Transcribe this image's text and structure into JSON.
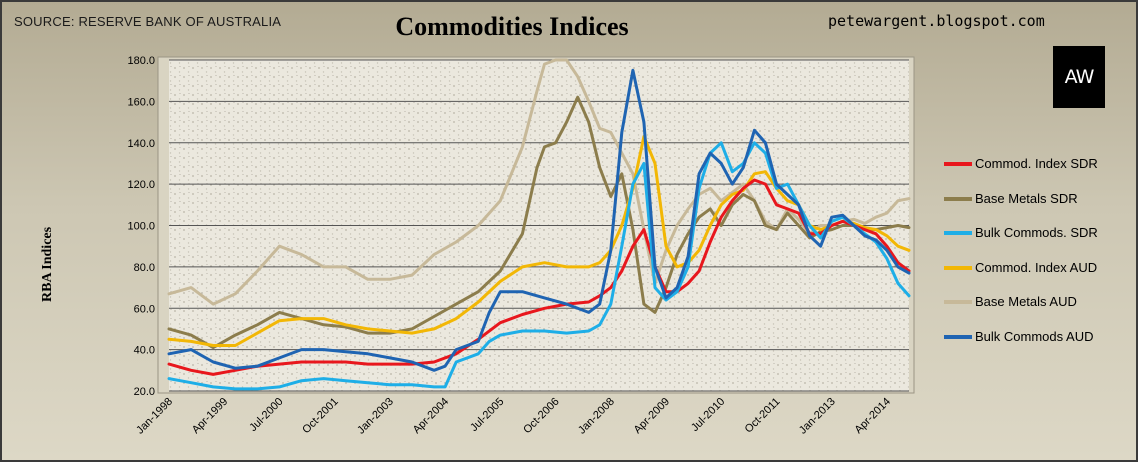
{
  "header": {
    "source": "SOURCE: RESERVE BANK OF AUSTRALIA",
    "title": "Commodities Indices",
    "blog": "petewargent.blogspot.com",
    "logo_text": "AW"
  },
  "chart_data": {
    "type": "line",
    "title": "Commodities Indices",
    "ylabel": "RBA Indices",
    "xlabel": "",
    "ylim": [
      20,
      180
    ],
    "yticks": [
      "20.0",
      "40.0",
      "60.0",
      "80.0",
      "100.0",
      "120.0",
      "140.0",
      "160.0",
      "180.0"
    ],
    "xticks": [
      "Jan-1998",
      "Apr-1999",
      "Jul-2000",
      "Oct-2001",
      "Jan-2003",
      "Apr-2004",
      "Jul-2005",
      "Oct-2006",
      "Jan-2008",
      "Apr-2009",
      "Jul-2010",
      "Oct-2011",
      "Jan-2013",
      "Apr-2014"
    ],
    "x_range": [
      1998.0,
      2014.75
    ],
    "grid": "horizontal",
    "legend_position": "right",
    "series": [
      {
        "name": "Base Metals AUD",
        "color": "#c7b999",
        "x": [
          1998.0,
          1998.5,
          1999.0,
          1999.5,
          2000.0,
          2000.5,
          2001.0,
          2001.5,
          2002.0,
          2002.5,
          2003.0,
          2003.5,
          2004.0,
          2004.5,
          2005.0,
          2005.5,
          2006.0,
          2006.33,
          2006.5,
          2006.75,
          2007.0,
          2007.25,
          2007.5,
          2007.75,
          2008.0,
          2008.25,
          2008.5,
          2008.75,
          2009.0,
          2009.25,
          2009.5,
          2009.75,
          2010.0,
          2010.25,
          2010.5,
          2010.75,
          2011.0,
          2011.25,
          2011.5,
          2011.75,
          2012.0,
          2012.25,
          2012.5,
          2012.75,
          2013.0,
          2013.25,
          2013.5,
          2013.75,
          2014.0,
          2014.25,
          2014.5,
          2014.75
        ],
        "values": [
          67,
          70,
          62,
          67,
          78,
          90,
          86,
          80,
          80,
          74,
          74,
          76,
          86,
          92,
          100,
          112,
          138,
          165,
          178,
          180,
          180,
          172,
          160,
          147,
          145,
          135,
          125,
          98,
          72,
          88,
          100,
          108,
          115,
          118,
          112,
          116,
          120,
          112,
          102,
          98,
          108,
          103,
          96,
          100,
          100,
          102,
          103,
          101,
          104,
          106,
          112,
          113
        ]
      },
      {
        "name": "Base Metals SDR",
        "color": "#8c7d4c",
        "x": [
          1998.0,
          1998.5,
          1999.0,
          1999.5,
          2000.0,
          2000.5,
          2001.0,
          2001.5,
          2002.0,
          2002.5,
          2003.0,
          2003.5,
          2004.0,
          2004.5,
          2005.0,
          2005.5,
          2006.0,
          2006.33,
          2006.5,
          2006.75,
          2007.0,
          2007.25,
          2007.5,
          2007.75,
          2008.0,
          2008.25,
          2008.5,
          2008.75,
          2009.0,
          2009.25,
          2009.5,
          2009.75,
          2010.0,
          2010.25,
          2010.5,
          2010.75,
          2011.0,
          2011.25,
          2011.5,
          2011.75,
          2012.0,
          2012.25,
          2012.5,
          2012.75,
          2013.0,
          2013.25,
          2013.5,
          2013.75,
          2014.0,
          2014.25,
          2014.5,
          2014.75
        ],
        "values": [
          50,
          47,
          41,
          47,
          52,
          58,
          55,
          52,
          51,
          48,
          48,
          50,
          56,
          62,
          68,
          78,
          96,
          128,
          138,
          140,
          150,
          162,
          150,
          128,
          114,
          125,
          98,
          62,
          58,
          70,
          86,
          96,
          104,
          108,
          100,
          110,
          115,
          112,
          100,
          98,
          106,
          100,
          94,
          97,
          98,
          100,
          100,
          98,
          98,
          99,
          100,
          99
        ]
      },
      {
        "name": "Commod. Index AUD",
        "color": "#f2b705",
        "x": [
          1998.0,
          1998.5,
          1999.0,
          1999.5,
          2000.0,
          2000.5,
          2001.0,
          2001.5,
          2002.0,
          2002.5,
          2003.0,
          2003.5,
          2004.0,
          2004.5,
          2005.0,
          2005.5,
          2006.0,
          2006.5,
          2007.0,
          2007.5,
          2007.75,
          2008.0,
          2008.25,
          2008.5,
          2008.75,
          2009.0,
          2009.25,
          2009.5,
          2009.75,
          2010.0,
          2010.25,
          2010.5,
          2010.75,
          2011.0,
          2011.25,
          2011.5,
          2011.75,
          2012.0,
          2012.25,
          2012.5,
          2012.75,
          2013.0,
          2013.25,
          2013.5,
          2013.75,
          2014.0,
          2014.25,
          2014.5,
          2014.75
        ],
        "values": [
          45,
          44,
          42,
          42,
          48,
          54,
          55,
          55,
          52,
          50,
          49,
          48,
          50,
          55,
          63,
          73,
          80,
          82,
          80,
          80,
          82,
          88,
          100,
          118,
          143,
          130,
          90,
          80,
          82,
          88,
          100,
          110,
          115,
          117,
          125,
          126,
          118,
          112,
          110,
          100,
          98,
          100,
          102,
          101,
          99,
          98,
          95,
          90,
          88
        ]
      },
      {
        "name": "Commod. Index SDR",
        "color": "#e8171d",
        "x": [
          1998.0,
          1998.5,
          1999.0,
          1999.5,
          2000.0,
          2000.5,
          2001.0,
          2001.5,
          2002.0,
          2002.5,
          2003.0,
          2003.5,
          2004.0,
          2004.5,
          2005.0,
          2005.5,
          2006.0,
          2006.5,
          2007.0,
          2007.5,
          2007.75,
          2008.0,
          2008.25,
          2008.5,
          2008.75,
          2009.0,
          2009.25,
          2009.5,
          2009.75,
          2010.0,
          2010.25,
          2010.5,
          2010.75,
          2011.0,
          2011.25,
          2011.5,
          2011.75,
          2012.0,
          2012.25,
          2012.5,
          2012.75,
          2013.0,
          2013.25,
          2013.5,
          2013.75,
          2014.0,
          2014.25,
          2014.5,
          2014.75
        ],
        "values": [
          33,
          30,
          28,
          30,
          32,
          33,
          34,
          34,
          34,
          33,
          33,
          33,
          34,
          38,
          45,
          53,
          57,
          60,
          62,
          63,
          66,
          70,
          78,
          90,
          98,
          80,
          68,
          68,
          72,
          78,
          92,
          104,
          112,
          118,
          122,
          120,
          110,
          108,
          106,
          96,
          96,
          100,
          102,
          100,
          98,
          96,
          90,
          82,
          78
        ]
      },
      {
        "name": "Bulk Commods. SDR",
        "color": "#1eaee7",
        "x": [
          1998.0,
          1998.5,
          1999.0,
          1999.5,
          2000.0,
          2000.5,
          2001.0,
          2001.5,
          2002.0,
          2002.5,
          2003.0,
          2003.5,
          2004.0,
          2004.25,
          2004.5,
          2005.0,
          2005.25,
          2005.5,
          2006.0,
          2006.5,
          2007.0,
          2007.5,
          2007.75,
          2008.0,
          2008.25,
          2008.5,
          2008.75,
          2009.0,
          2009.25,
          2009.5,
          2009.75,
          2010.0,
          2010.25,
          2010.5,
          2010.75,
          2011.0,
          2011.25,
          2011.5,
          2011.75,
          2012.0,
          2012.25,
          2012.5,
          2012.75,
          2013.0,
          2013.25,
          2013.5,
          2013.75,
          2014.0,
          2014.25,
          2014.5,
          2014.75
        ],
        "values": [
          26,
          24,
          22,
          21,
          21,
          22,
          25,
          26,
          25,
          24,
          23,
          23,
          22,
          22,
          34,
          38,
          44,
          47,
          49,
          49,
          48,
          49,
          52,
          62,
          90,
          120,
          130,
          70,
          64,
          68,
          80,
          118,
          135,
          140,
          126,
          130,
          140,
          135,
          118,
          120,
          110,
          100,
          94,
          102,
          104,
          100,
          96,
          92,
          84,
          72,
          66
        ]
      },
      {
        "name": "Bulk Commods AUD",
        "color": "#1f64b2",
        "x": [
          1998.0,
          1998.5,
          1999.0,
          1999.5,
          2000.0,
          2000.5,
          2001.0,
          2001.5,
          2002.0,
          2002.5,
          2003.0,
          2003.5,
          2004.0,
          2004.25,
          2004.5,
          2005.0,
          2005.25,
          2005.5,
          2006.0,
          2006.5,
          2007.0,
          2007.5,
          2007.75,
          2008.0,
          2008.25,
          2008.5,
          2008.75,
          2009.0,
          2009.25,
          2009.5,
          2009.75,
          2010.0,
          2010.25,
          2010.5,
          2010.75,
          2011.0,
          2011.25,
          2011.5,
          2011.75,
          2012.0,
          2012.25,
          2012.5,
          2012.75,
          2013.0,
          2013.25,
          2013.5,
          2013.75,
          2014.0,
          2014.25,
          2014.5,
          2014.75
        ],
        "values": [
          38,
          40,
          34,
          31,
          32,
          36,
          40,
          40,
          39,
          38,
          36,
          34,
          30,
          32,
          40,
          44,
          58,
          68,
          68,
          65,
          62,
          58,
          62,
          88,
          145,
          175,
          150,
          80,
          65,
          70,
          85,
          125,
          135,
          130,
          120,
          128,
          146,
          140,
          120,
          115,
          110,
          95,
          90,
          104,
          105,
          100,
          95,
          93,
          88,
          80,
          77
        ]
      }
    ]
  },
  "legend": [
    {
      "label": "Commod. Index SDR",
      "color": "#e8171d"
    },
    {
      "label": "Base Metals SDR",
      "color": "#8c7d4c"
    },
    {
      "label": "Bulk Commods. SDR",
      "color": "#1eaee7"
    },
    {
      "label": "Commod. Index AUD",
      "color": "#f2b705"
    },
    {
      "label": "Base Metals AUD",
      "color": "#c7b999"
    },
    {
      "label": "Bulk Commods AUD",
      "color": "#1f64b2"
    }
  ]
}
